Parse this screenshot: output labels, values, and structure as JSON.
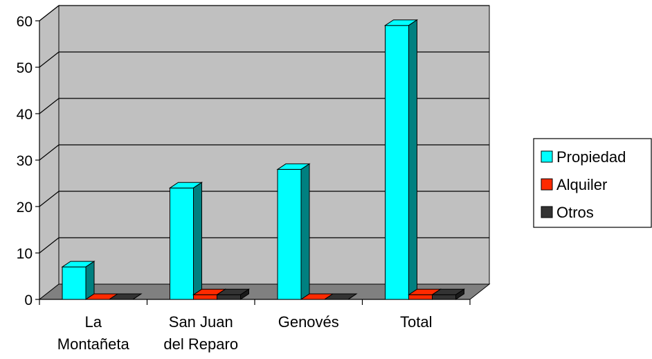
{
  "chart_data": {
    "type": "bar",
    "style": "3d-clustered-column",
    "categories": [
      [
        "La",
        "Montañeta"
      ],
      [
        "San Juan",
        "del Reparo"
      ],
      [
        "Genovés"
      ],
      [
        "Total"
      ]
    ],
    "series": [
      {
        "name": "Propiedad",
        "values": [
          7,
          24,
          28,
          59
        ],
        "color": "#00ffff",
        "side_color": "#008080"
      },
      {
        "name": "Alquiler",
        "values": [
          0,
          1,
          0,
          1
        ],
        "color": "#ff2a00",
        "side_color": "#800000"
      },
      {
        "name": "Otros",
        "values": [
          0,
          1,
          0,
          1
        ],
        "color": "#333333",
        "side_color": "#1a1a1a"
      }
    ],
    "yticks": [
      "0",
      "10",
      "20",
      "30",
      "40",
      "50",
      "60"
    ],
    "ylim": [
      0,
      60
    ],
    "grid": true,
    "legend": "right",
    "wall_color": "#c0c0c0",
    "floor_color": "#808080"
  }
}
